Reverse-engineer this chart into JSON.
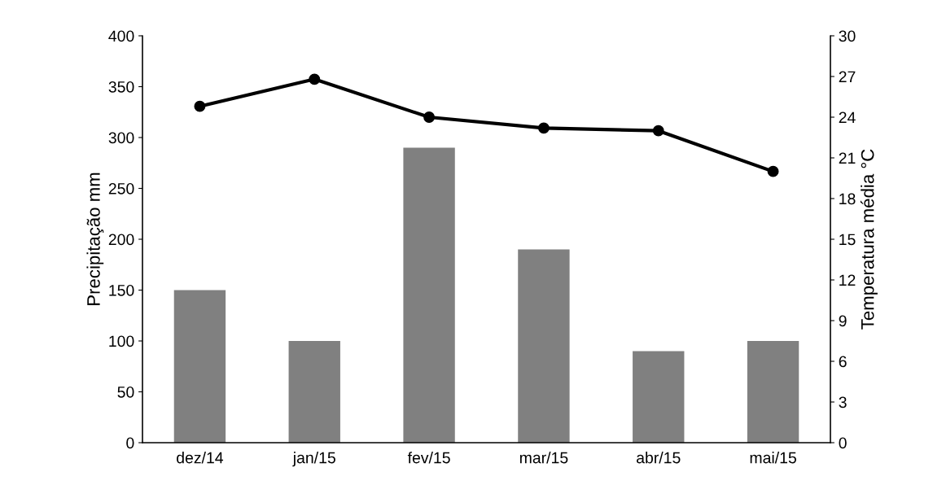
{
  "chart_data": {
    "type": "bar",
    "categories": [
      "dez/14",
      "jan/15",
      "fev/15",
      "mar/15",
      "abr/15",
      "mai/15"
    ],
    "ylabel": "Precipitação mm",
    "y2label": "Temperatura média °C",
    "ylim": [
      0,
      400
    ],
    "yticks": [
      0,
      50,
      100,
      150,
      200,
      250,
      300,
      350,
      400
    ],
    "y2lim": [
      0,
      30
    ],
    "y2ticks": [
      0,
      3,
      6,
      9,
      12,
      15,
      18,
      21,
      24,
      27,
      30
    ],
    "grid": false,
    "legend": false,
    "series": [
      {
        "color": "#808080",
        "values": [
          150,
          100,
          290,
          190,
          90,
          100
        ]
      },
      {
        "type": "line",
        "axis": "y2",
        "color": "#000000",
        "marker": "circle",
        "line_style": "solid",
        "values": [
          24.8,
          26.8,
          24.0,
          23.2,
          23.0,
          20.0
        ]
      }
    ]
  }
}
